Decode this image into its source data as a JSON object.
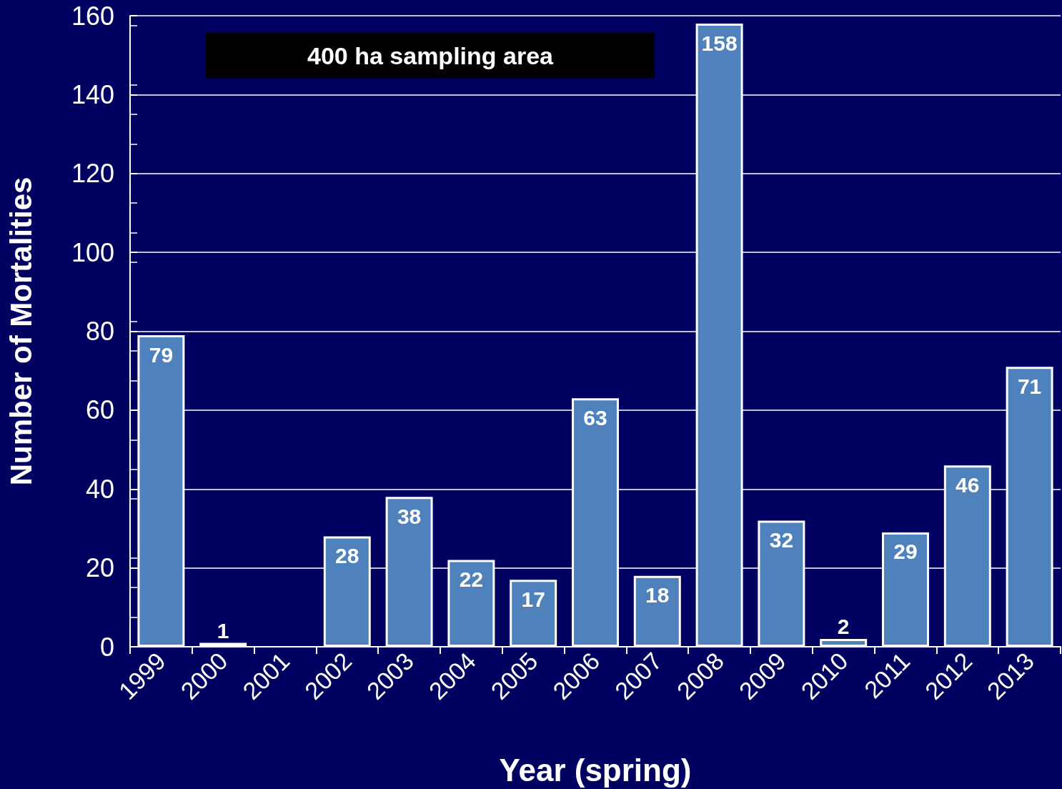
{
  "chart_data": {
    "type": "bar",
    "xlabel": "Year (spring)",
    "ylabel": "Number of Mortalities",
    "annotations": [
      "400 ha sampling area"
    ],
    "categories": [
      "1999",
      "2000",
      "2001",
      "2002",
      "2003",
      "2004",
      "2005",
      "2006",
      "2007",
      "2008",
      "2009",
      "2010",
      "2011",
      "2012",
      "2013"
    ],
    "values": [
      79,
      1,
      null,
      28,
      38,
      22,
      17,
      63,
      18,
      158,
      32,
      2,
      29,
      46,
      71
    ],
    "color": "#4f81bd",
    "ylim": [
      0,
      160
    ],
    "yticks": [
      0,
      20,
      40,
      60,
      80,
      100,
      120,
      140,
      160
    ],
    "grid": "y",
    "data_labels": true
  }
}
